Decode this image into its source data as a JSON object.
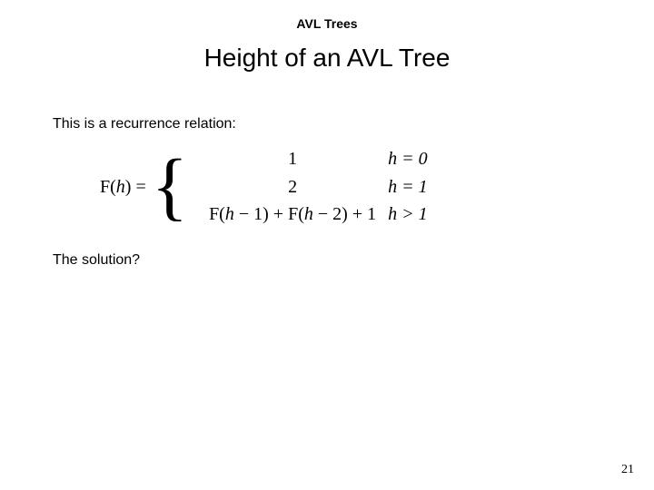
{
  "header": {
    "topic": "AVL Trees"
  },
  "title": "Height of an AVL Tree",
  "body": {
    "intro": "This is a recurrence relation:",
    "solution_prompt": "The solution?"
  },
  "formula": {
    "lhs": "F(h) =",
    "cases": [
      {
        "value": "1",
        "condition": "h = 0"
      },
      {
        "value": "2",
        "condition": "h = 1"
      },
      {
        "value": "F(h − 1) + F(h − 2) + 1",
        "condition": "h > 1"
      }
    ]
  },
  "page_number": "21"
}
